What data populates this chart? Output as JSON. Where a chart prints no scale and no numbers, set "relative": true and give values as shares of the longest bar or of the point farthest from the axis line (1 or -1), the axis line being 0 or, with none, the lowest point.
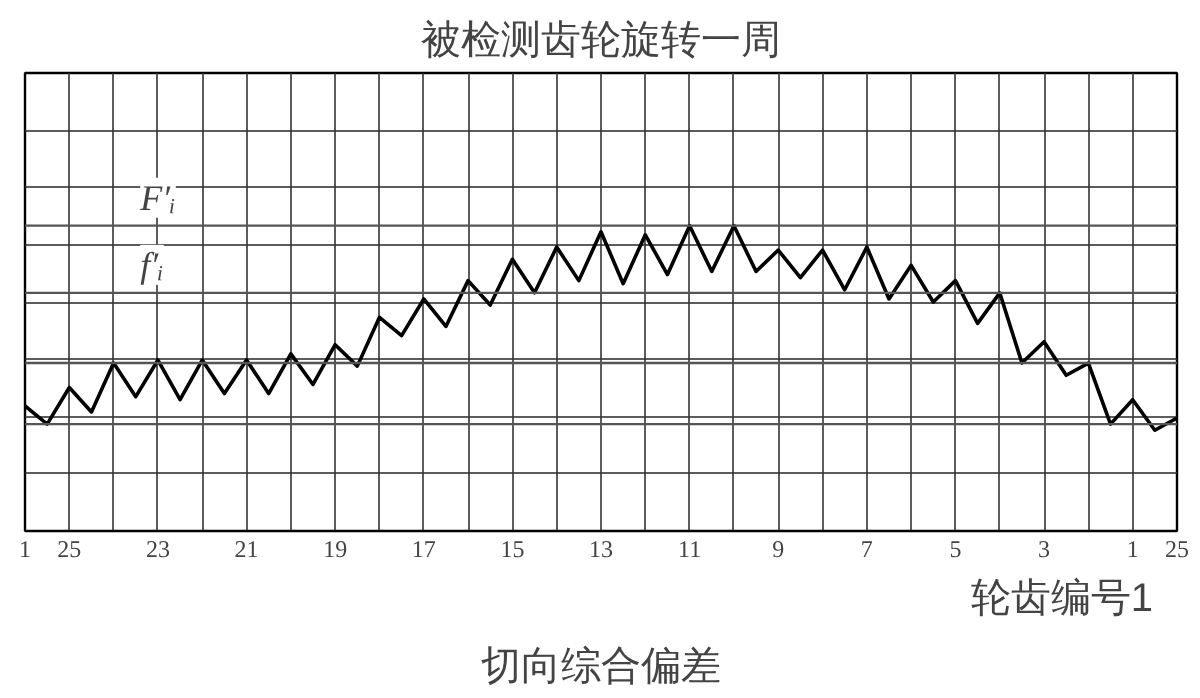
{
  "chart_data": {
    "type": "line",
    "title": "被检测齿轮旋转一周",
    "annotations": [
      "轮齿编号1",
      "切向综合偏差"
    ],
    "relative": true,
    "color": "#000000",
    "grid": true,
    "tick_labels": "x",
    "categories": [
      "1",
      null,
      "25",
      null,
      null,
      null,
      "23",
      null,
      null,
      null,
      "21",
      null,
      null,
      null,
      "19",
      null,
      null,
      null,
      "17",
      null,
      null,
      null,
      "15",
      null,
      null,
      null,
      "13",
      null,
      null,
      null,
      "11",
      null,
      null,
      null,
      "9",
      null,
      null,
      null,
      "7",
      null,
      null,
      null,
      "5",
      null,
      null,
      null,
      "3",
      null,
      null,
      null,
      "1",
      null,
      "25"
    ],
    "values": [
      0.41,
      0.35,
      0.47,
      0.39,
      0.55,
      0.44,
      0.56,
      0.43,
      0.56,
      0.45,
      0.56,
      0.45,
      0.58,
      0.48,
      0.61,
      0.54,
      0.7,
      0.64,
      0.76,
      0.67,
      0.82,
      0.74,
      0.89,
      0.78,
      0.93,
      0.82,
      0.98,
      0.81,
      0.97,
      0.84,
      1.0,
      0.85,
      1.0,
      0.85,
      0.92,
      0.83,
      0.92,
      0.79,
      0.93,
      0.76,
      0.87,
      0.75,
      0.82,
      0.68,
      0.78,
      0.55,
      0.62,
      0.51,
      0.55,
      0.35,
      0.43,
      0.33,
      0.37
    ],
    "ref_lines": [
      {
        "axis": "y",
        "value": 1.0,
        "label": "F′ᵢ"
      },
      {
        "axis": "y",
        "value": 0.35,
        "label": null
      },
      {
        "axis": "y",
        "value": 0.78,
        "label": "f′ᵢ"
      },
      {
        "axis": "y",
        "value": 0.55,
        "label": null
      }
    ]
  }
}
